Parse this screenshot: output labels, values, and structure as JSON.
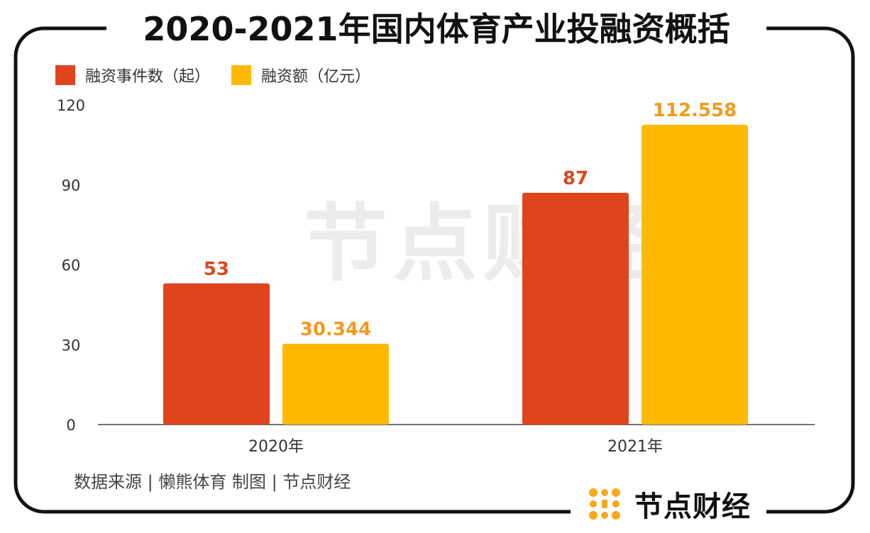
{
  "title": "2020-2021年国内体育产业投融资概括",
  "legend": {
    "events_label": "融资事件数（起）",
    "amount_label": "融资额（亿元）"
  },
  "footer": {
    "source": "数据来源 | 懒熊体育    制图 | 节点财经"
  },
  "brand": {
    "name": "节点财经",
    "logo_icon": "jiedian-logo-icon"
  },
  "watermark": {
    "text": "节点财经"
  },
  "colors": {
    "events": "#E0441D",
    "amount": "#FFB900",
    "events_label": "#D9481F",
    "amount_label": "#F29A1F"
  },
  "chart_data": {
    "type": "bar",
    "categories": [
      "2020年",
      "2021年"
    ],
    "series": [
      {
        "name": "融资事件数（起）",
        "values": [
          53,
          87
        ],
        "labels": [
          "53",
          "87"
        ]
      },
      {
        "name": "融资额（亿元）",
        "values": [
          30.344,
          112.558
        ],
        "labels": [
          "30.344",
          "112.558"
        ]
      }
    ],
    "yticks": [
      "0",
      "30",
      "60",
      "90",
      "120"
    ],
    "ylim": [
      0,
      120
    ],
    "grid": false,
    "legend_position": "top-left"
  }
}
